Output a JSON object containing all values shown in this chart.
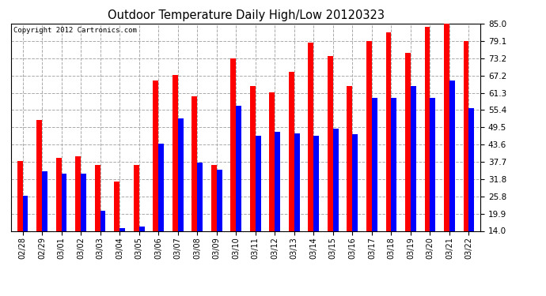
{
  "title": "Outdoor Temperature Daily High/Low 20120323",
  "copyright": "Copyright 2012 Cartronics.com",
  "dates": [
    "02/28",
    "02/29",
    "03/01",
    "03/02",
    "03/03",
    "03/04",
    "03/05",
    "03/06",
    "03/07",
    "03/08",
    "03/09",
    "03/10",
    "03/11",
    "03/12",
    "03/13",
    "03/14",
    "03/15",
    "03/16",
    "03/17",
    "03/18",
    "03/19",
    "03/20",
    "03/21",
    "03/22"
  ],
  "highs": [
    38.0,
    52.0,
    39.0,
    39.5,
    36.5,
    31.0,
    36.5,
    65.5,
    67.5,
    60.0,
    36.5,
    73.0,
    63.5,
    61.5,
    68.5,
    78.5,
    74.0,
    63.5,
    79.0,
    82.0,
    75.0,
    84.0,
    85.0,
    79.0
  ],
  "lows": [
    26.0,
    34.5,
    33.5,
    33.5,
    21.0,
    15.0,
    15.5,
    44.0,
    52.5,
    37.5,
    35.0,
    57.0,
    46.5,
    48.0,
    47.5,
    46.5,
    49.0,
    47.0,
    59.5,
    59.5,
    63.5,
    59.5,
    65.5,
    56.0
  ],
  "high_color": "#ff0000",
  "low_color": "#0000ff",
  "bg_color": "#ffffff",
  "grid_color": "#aaaaaa",
  "yticks": [
    14.0,
    19.9,
    25.8,
    31.8,
    37.7,
    43.6,
    49.5,
    55.4,
    61.3,
    67.2,
    73.2,
    79.1,
    85.0
  ],
  "ymin": 14.0,
  "ymax": 85.0,
  "bar_width": 0.28
}
